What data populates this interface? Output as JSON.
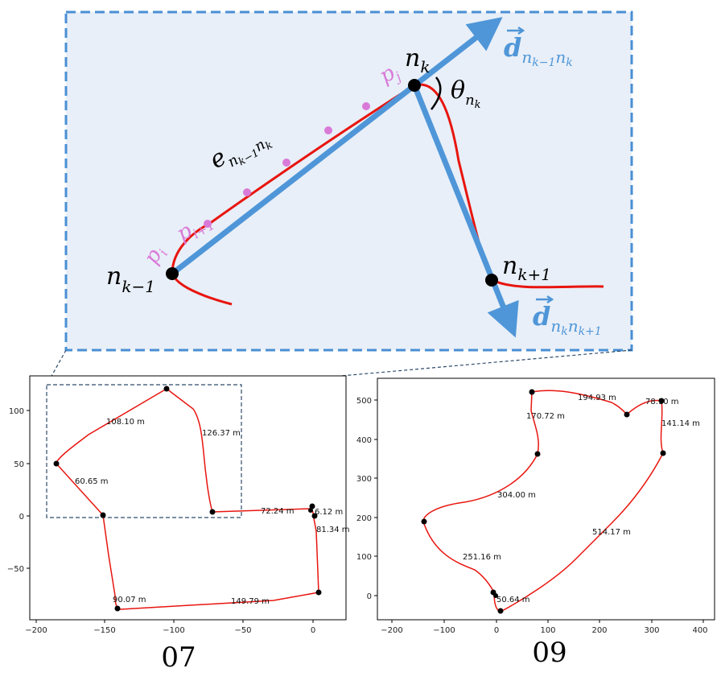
{
  "diagram": {
    "labels": {
      "node_prev": "n",
      "node_prev_sub": "k−1",
      "node_cur": "n",
      "node_cur_sub": "k",
      "node_next": "n",
      "node_next_sub": "k+1",
      "edge": "e",
      "edge_sub": "n",
      "edge_sub2": "k−1",
      "edge_sub3": "n",
      "edge_sub4": "k",
      "p_i": "p",
      "p_i_sub": "i",
      "p_i1": "p",
      "p_i1_sub": "i+1",
      "p_j": "p",
      "p_j_sub": "j",
      "theta": "θ",
      "theta_sub": "n",
      "theta_sub2": "k",
      "d1": "d",
      "d1_sub": "n",
      "d1_sub2": "k−1",
      "d1_sub3": "n",
      "d1_sub4": "k",
      "d2": "d",
      "d2_sub": "n",
      "d2_sub2": "k",
      "d2_sub3": "n",
      "d2_sub4": "k+1"
    },
    "colors": {
      "box_fill": "#e8eff8",
      "box_border": "#4a8fd4",
      "trajectory": "#e8150f",
      "arrow": "#4f96d8",
      "point": "#d97ad8",
      "node": "#000000"
    }
  },
  "plots": {
    "left": {
      "caption": "07",
      "x_ticks": [
        "−200",
        "−150",
        "−100",
        "−50",
        "0"
      ],
      "y_ticks": [
        "100",
        "50",
        "0",
        "−50"
      ],
      "edge_labels": [
        "108.10 m",
        "126.37 m",
        "60.65 m",
        "72.24 m",
        "6.12 m",
        "81.34 m",
        "90.07 m",
        "149.79 m"
      ]
    },
    "right": {
      "caption": "09",
      "x_ticks": [
        "−200",
        "−100",
        "0",
        "100",
        "200",
        "300",
        "400"
      ],
      "y_ticks": [
        "500",
        "400",
        "300",
        "200",
        "100",
        "0"
      ],
      "edge_labels": [
        "194.93 m",
        "78.10 m",
        "170.72 m",
        "141.14 m",
        "304.00 m",
        "514.17 m",
        "251.16 m",
        "50.64 m"
      ]
    }
  }
}
